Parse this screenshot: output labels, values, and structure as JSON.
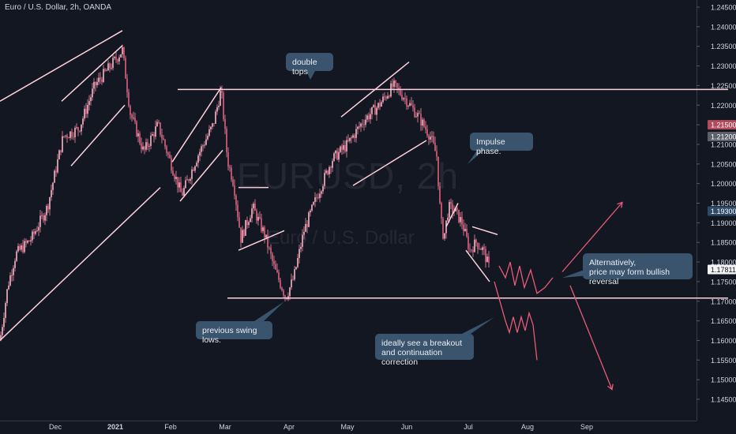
{
  "header": {
    "title": "Euro / U.S. Dollar, 2h, OANDA"
  },
  "watermark": {
    "symbol": "EURUSD, 2h",
    "name": "Euro / U.S. Dollar"
  },
  "colors": {
    "background": "#131722",
    "candle": "#f28fa8",
    "line": "#ffd1dc",
    "projection": "#e85c78",
    "callout_bg": "#3a546e",
    "axis_text": "#d1d4dc",
    "label_red": "#b34a5c",
    "label_gray": "#5d606b",
    "label_blue": "#2e4a66"
  },
  "callouts": {
    "double_tops": "double tops",
    "impulse": "Impulse phase.",
    "swing_lows": "previous swing lows.",
    "breakout": "ideally see a breakout\nand continuation correction",
    "alternative": "Alternatively,\nprice may form bullish reversal"
  },
  "chart_data": {
    "type": "candlestick",
    "title": "Euro / U.S. Dollar, 2h, OANDA",
    "x_ticks": [
      "Dec",
      "2021",
      "Feb",
      "Mar",
      "Apr",
      "May",
      "Jun",
      "Jul",
      "Aug",
      "Sep"
    ],
    "y_ticks": [
      "1.24500",
      "1.24000",
      "1.23500",
      "1.23000",
      "1.22500",
      "1.22000",
      "1.21500",
      "1.21000",
      "1.20500",
      "1.20000",
      "1.19500",
      "1.19000",
      "1.18500",
      "1.18000",
      "1.17500",
      "1.17000",
      "1.16500",
      "1.16000",
      "1.15500",
      "1.15000",
      "1.14500"
    ],
    "ylim": [
      1.1415,
      1.2465
    ],
    "price_labels": [
      {
        "value": "1.21500",
        "style": "red"
      },
      {
        "value": "1.21200",
        "style": "gray"
      },
      {
        "value": "1.19300",
        "style": "blue"
      },
      {
        "value": "1.17811",
        "style": "last"
      }
    ],
    "series": [
      {
        "name": "EURUSD",
        "path": [
          [
            0,
            1.16
          ],
          [
            10,
            1.174
          ],
          [
            20,
            1.182
          ],
          [
            40,
            1.186
          ],
          [
            60,
            1.194
          ],
          [
            80,
            1.212
          ],
          [
            100,
            1.214
          ],
          [
            120,
            1.225
          ],
          [
            140,
            1.23
          ],
          [
            155,
            1.234
          ],
          [
            165,
            1.218
          ],
          [
            182,
            1.208
          ],
          [
            200,
            1.215
          ],
          [
            215,
            1.206
          ],
          [
            230,
            1.197
          ],
          [
            250,
            1.207
          ],
          [
            270,
            1.215
          ],
          [
            280,
            1.224
          ],
          [
            288,
            1.206
          ],
          [
            296,
            1.2
          ],
          [
            305,
            1.186
          ],
          [
            320,
            1.194
          ],
          [
            335,
            1.187
          ],
          [
            348,
            1.178
          ],
          [
            362,
            1.171
          ],
          [
            372,
            1.176
          ],
          [
            385,
            1.188
          ],
          [
            400,
            1.196
          ],
          [
            420,
            1.206
          ],
          [
            440,
            1.21
          ],
          [
            460,
            1.216
          ],
          [
            480,
            1.22
          ],
          [
            498,
            1.225
          ],
          [
            512,
            1.222
          ],
          [
            530,
            1.217
          ],
          [
            545,
            1.212
          ],
          [
            553,
            1.207
          ],
          [
            558,
            1.191
          ],
          [
            562,
            1.186
          ],
          [
            568,
            1.194
          ],
          [
            576,
            1.193
          ],
          [
            585,
            1.19
          ],
          [
            595,
            1.183
          ],
          [
            603,
            1.185
          ],
          [
            612,
            1.183
          ],
          [
            620,
            1.1781
          ]
        ]
      }
    ],
    "trendlines": [
      {
        "x1": 0,
        "y1": 1.221,
        "x2": 155,
        "y2": 1.239
      },
      {
        "x1": 78,
        "y1": 1.221,
        "x2": 155,
        "y2": 1.2352
      },
      {
        "x1": 90,
        "y1": 1.2045,
        "x2": 158,
        "y2": 1.22
      },
      {
        "x1": 0,
        "y1": 1.16,
        "x2": 203,
        "y2": 1.199
      },
      {
        "x1": 218,
        "y1": 1.2055,
        "x2": 280,
        "y2": 1.2245
      },
      {
        "x1": 228,
        "y1": 1.1955,
        "x2": 282,
        "y2": 1.2085
      },
      {
        "x1": 225,
        "y1": 1.224,
        "x2": 922,
        "y2": 1.224
      },
      {
        "x1": 302,
        "y1": 1.199,
        "x2": 340,
        "y2": 1.199
      },
      {
        "x1": 302,
        "y1": 1.183,
        "x2": 360,
        "y2": 1.188
      },
      {
        "x1": 288,
        "y1": 1.1708,
        "x2": 922,
        "y2": 1.1708
      },
      {
        "x1": 432,
        "y1": 1.217,
        "x2": 518,
        "y2": 1.231
      },
      {
        "x1": 447,
        "y1": 1.1995,
        "x2": 540,
        "y2": 1.211
      },
      {
        "x1": 565,
        "y1": 1.189,
        "x2": 580,
        "y2": 1.195
      },
      {
        "x1": 590,
        "y1": 1.183,
        "x2": 620,
        "y2": 1.175
      },
      {
        "x1": 598,
        "y1": 1.189,
        "x2": 630,
        "y2": 1.187
      }
    ],
    "projections": [
      [
        [
          626,
          1.175
        ],
        [
          640,
          1.165
        ],
        [
          645,
          1.162
        ],
        [
          650,
          1.166
        ],
        [
          655,
          1.162
        ],
        [
          660,
          1.166
        ],
        [
          665,
          1.1625
        ],
        [
          670,
          1.167
        ],
        [
          675,
          1.164
        ],
        [
          680,
          1.155
        ]
      ],
      [
        [
          632,
          1.179
        ],
        [
          640,
          1.176
        ],
        [
          646,
          1.18
        ],
        [
          652,
          1.174
        ],
        [
          658,
          1.179
        ],
        [
          664,
          1.1735
        ],
        [
          672,
          1.178
        ],
        [
          680,
          1.172
        ],
        [
          690,
          1.1735
        ],
        [
          700,
          1.176
        ]
      ],
      [
        [
          712,
          1.1775
        ],
        [
          788,
          1.1952
        ]
      ],
      [
        [
          722,
          1.174
        ],
        [
          775,
          1.1475
        ]
      ]
    ]
  }
}
